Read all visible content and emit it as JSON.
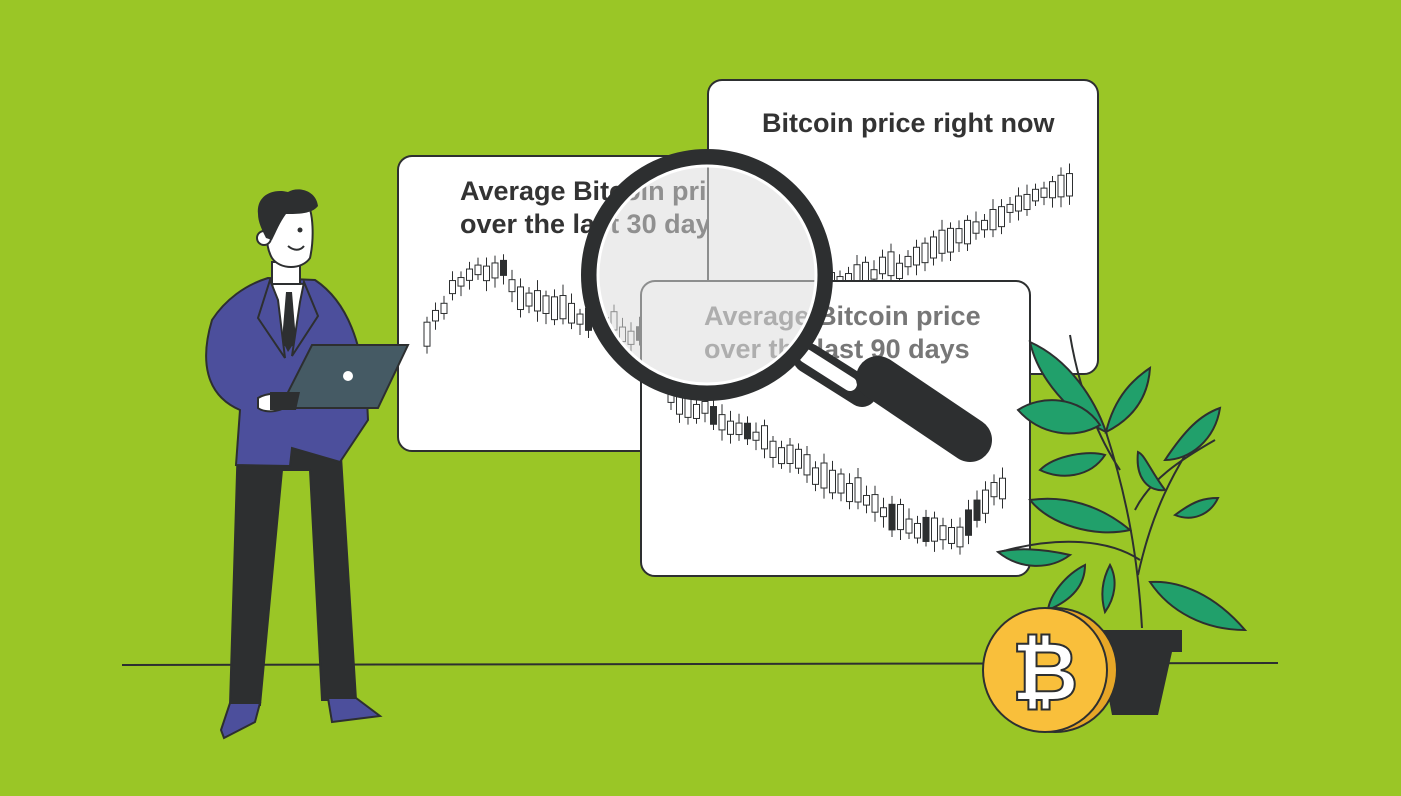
{
  "cards": {
    "now": {
      "title": "Bitcoin price right now"
    },
    "avg30": {
      "title_line1": "Average Bitcoin price",
      "title_line2": "over the last 30 days"
    },
    "avg90": {
      "title_line1": "Average Bitcoin price",
      "title_line2": "over the last 90 days"
    }
  },
  "coin": {
    "symbol": "₿"
  },
  "colors": {
    "background": "#9ac626",
    "ink": "#2d2f30",
    "card": "#ffffff",
    "suit": "#4c4f9c",
    "laptop": "#455a64",
    "coin": "#f9bf3b",
    "leaf": "#21a06b"
  },
  "icons": [
    "person-illustration",
    "laptop-icon",
    "magnifier-icon",
    "bitcoin-coin-icon",
    "plant-icon"
  ]
}
